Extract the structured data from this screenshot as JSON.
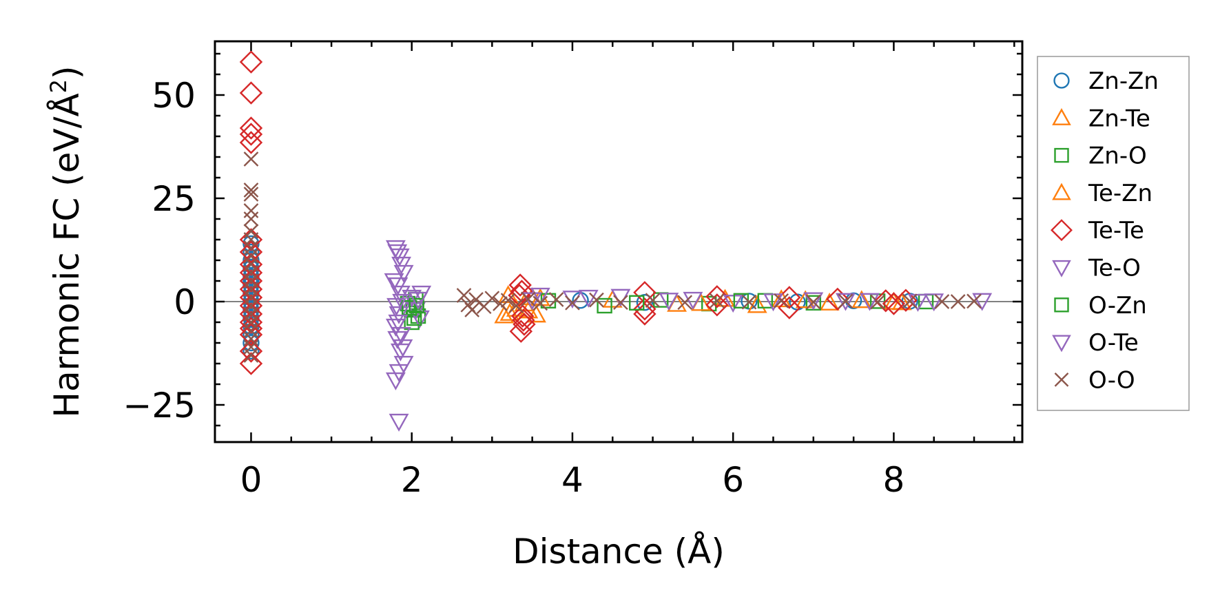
{
  "chart_data": {
    "type": "scatter",
    "xlabel": "Distance (Å)",
    "ylabel_main": "Harmonic FC (eV/Å",
    "ylabel_sup": "2",
    "ylabel_close": ")",
    "xlim": [
      -0.45,
      9.6
    ],
    "ylim": [
      -34,
      63
    ],
    "xticks": [
      0,
      2,
      4,
      6,
      8
    ],
    "xtick_labels": [
      "0",
      "2",
      "4",
      "6",
      "8"
    ],
    "yticks": [
      -25,
      0,
      25,
      50
    ],
    "ytick_labels": [
      "−25",
      "0",
      "25",
      "50"
    ],
    "zero_line": true,
    "grid": false,
    "legend_position": "right-outside",
    "series": [
      {
        "name": "Zn-Zn",
        "marker": "circle",
        "color": "#1f77b4",
        "points": [
          [
            0,
            14
          ],
          [
            0,
            12
          ],
          [
            0,
            10
          ],
          [
            0,
            8
          ],
          [
            0,
            6
          ],
          [
            0,
            5
          ],
          [
            0,
            4
          ],
          [
            0,
            2
          ],
          [
            0,
            0
          ],
          [
            0,
            -2
          ],
          [
            0,
            -4
          ],
          [
            0,
            -6
          ],
          [
            0,
            -8
          ],
          [
            0,
            -10
          ],
          [
            0,
            -12
          ],
          [
            4.1,
            0.3
          ],
          [
            4.9,
            -0.2
          ],
          [
            6.2,
            0.1
          ],
          [
            6.8,
            -0.1
          ],
          [
            7.5,
            0.2
          ],
          [
            8.2,
            0.1
          ]
        ]
      },
      {
        "name": "Zn-Te",
        "marker": "triangle-up",
        "color": "#ff7f0e",
        "points": [
          [
            3.15,
            -3.4
          ],
          [
            3.2,
            1.5
          ],
          [
            3.3,
            -1.8
          ],
          [
            3.45,
            -2.2
          ],
          [
            3.55,
            -3.2
          ],
          [
            3.6,
            0.8
          ],
          [
            4.5,
            0.4
          ],
          [
            5.3,
            -0.6
          ],
          [
            5.9,
            0.6
          ],
          [
            6.3,
            -0.9
          ],
          [
            6.6,
            0.5
          ],
          [
            7.2,
            -0.3
          ],
          [
            7.6,
            0.3
          ],
          [
            8.1,
            -0.2
          ]
        ]
      },
      {
        "name": "Zn-O",
        "marker": "square",
        "color": "#2ca02c",
        "points": [
          [
            1.95,
            -0.5
          ],
          [
            2.0,
            -5.0
          ],
          [
            2.02,
            -2.0
          ],
          [
            2.05,
            0.5
          ],
          [
            2.08,
            -3.5
          ],
          [
            3.7,
            0.2
          ],
          [
            4.4,
            -1.0
          ],
          [
            5.1,
            0.4
          ],
          [
            5.7,
            -0.5
          ],
          [
            6.4,
            0.2
          ],
          [
            7.0,
            -0.3
          ],
          [
            7.8,
            0.1
          ],
          [
            8.4,
            0.0
          ]
        ]
      },
      {
        "name": "Te-Zn",
        "marker": "triangle-up",
        "color": "#ff7f0e",
        "points": [
          [
            3.22,
            -2.8
          ],
          [
            3.4,
            -0.5
          ],
          [
            3.5,
            1.0
          ],
          [
            5.6,
            -0.4
          ],
          [
            6.9,
            0.3
          ],
          [
            8.0,
            -0.1
          ]
        ]
      },
      {
        "name": "Te-Te",
        "marker": "diamond",
        "color": "#d62728",
        "points": [
          [
            0,
            58
          ],
          [
            0,
            50.5
          ],
          [
            0,
            42
          ],
          [
            0,
            40.5
          ],
          [
            0,
            38.5
          ],
          [
            0,
            15
          ],
          [
            0,
            12
          ],
          [
            0,
            9
          ],
          [
            0,
            7
          ],
          [
            0,
            5
          ],
          [
            0,
            3
          ],
          [
            0,
            1
          ],
          [
            0,
            -1
          ],
          [
            0,
            -3
          ],
          [
            0,
            -5
          ],
          [
            0,
            -6.5
          ],
          [
            0,
            -8
          ],
          [
            0,
            -12
          ],
          [
            0,
            -15
          ],
          [
            3.35,
            4
          ],
          [
            3.37,
            2.5
          ],
          [
            3.38,
            -3.5
          ],
          [
            3.39,
            -4.5
          ],
          [
            3.4,
            -5.5
          ],
          [
            3.36,
            -7.2
          ],
          [
            3.34,
            1.5
          ],
          [
            4.9,
            2.2
          ],
          [
            4.9,
            -1.8
          ],
          [
            4.9,
            -3.0
          ],
          [
            5.8,
            1.2
          ],
          [
            5.8,
            -0.8
          ],
          [
            6.7,
            -1.5
          ],
          [
            6.7,
            1.0
          ],
          [
            7.3,
            0.6
          ],
          [
            7.9,
            0.2
          ],
          [
            8.0,
            -0.5
          ],
          [
            8.15,
            0.3
          ]
        ]
      },
      {
        "name": "Te-O",
        "marker": "triangle-down",
        "color": "#9467bd",
        "points": [
          [
            1.8,
            13
          ],
          [
            1.82,
            12
          ],
          [
            1.85,
            11
          ],
          [
            1.87,
            9
          ],
          [
            1.9,
            7
          ],
          [
            1.83,
            4
          ],
          [
            1.86,
            2
          ],
          [
            1.88,
            0
          ],
          [
            1.84,
            -3
          ],
          [
            1.8,
            -6
          ],
          [
            1.82,
            -9
          ],
          [
            1.86,
            -12
          ],
          [
            1.9,
            -15
          ],
          [
            1.84,
            -17
          ],
          [
            1.8,
            -19
          ],
          [
            1.84,
            -29
          ],
          [
            2.0,
            1
          ],
          [
            2.05,
            -2
          ],
          [
            2.1,
            -4
          ],
          [
            2.12,
            2
          ],
          [
            3.6,
            1.5
          ],
          [
            4.0,
            0.8
          ],
          [
            4.6,
            1.2
          ],
          [
            5.5,
            0.5
          ],
          [
            6.0,
            -0.2
          ],
          [
            7.0,
            0.4
          ],
          [
            7.7,
            0.2
          ],
          [
            8.5,
            0.1
          ],
          [
            9.1,
            0.2
          ]
        ]
      },
      {
        "name": "O-Zn",
        "marker": "square",
        "color": "#2ca02c",
        "points": [
          [
            1.97,
            -1.5
          ],
          [
            2.03,
            -4.0
          ],
          [
            2.06,
            -1.0
          ],
          [
            4.8,
            -0.3
          ],
          [
            6.1,
            0.2
          ]
        ]
      },
      {
        "name": "O-Te",
        "marker": "triangle-down",
        "color": "#9467bd",
        "points": [
          [
            1.78,
            5
          ],
          [
            1.81,
            -1
          ],
          [
            1.83,
            -5
          ],
          [
            1.87,
            -8
          ],
          [
            1.89,
            -11
          ],
          [
            2.08,
            0.5
          ],
          [
            3.5,
            0.4
          ],
          [
            4.2,
            1.0
          ],
          [
            5.2,
            0.3
          ],
          [
            6.5,
            0.1
          ],
          [
            7.4,
            0.2
          ],
          [
            8.3,
            0.0
          ]
        ]
      },
      {
        "name": "O-O",
        "marker": "x",
        "color": "#8c564b",
        "points": [
          [
            0,
            34.5
          ],
          [
            0,
            27
          ],
          [
            0,
            26
          ],
          [
            0,
            22
          ],
          [
            0,
            20
          ],
          [
            0,
            17
          ],
          [
            0,
            15
          ],
          [
            0,
            13
          ],
          [
            0,
            11
          ],
          [
            0,
            9
          ],
          [
            0,
            7
          ],
          [
            0,
            5
          ],
          [
            0,
            3
          ],
          [
            0,
            1
          ],
          [
            0,
            -1
          ],
          [
            0,
            -3
          ],
          [
            0,
            -5
          ],
          [
            0,
            -7
          ],
          [
            0,
            -9
          ],
          [
            0,
            -11
          ],
          [
            0,
            -13
          ],
          [
            2.65,
            1.5
          ],
          [
            2.7,
            -0.8
          ],
          [
            2.75,
            -2.0
          ],
          [
            2.8,
            0.5
          ],
          [
            2.9,
            -1.2
          ],
          [
            3.0,
            0.8
          ],
          [
            3.1,
            -0.5
          ],
          [
            3.2,
            0.3
          ],
          [
            3.3,
            -1.0
          ],
          [
            3.45,
            0.6
          ],
          [
            3.6,
            -0.4
          ],
          [
            3.8,
            0.5
          ],
          [
            4.0,
            -0.3
          ],
          [
            4.3,
            0.4
          ],
          [
            4.6,
            -0.2
          ],
          [
            5.0,
            0.3
          ],
          [
            5.4,
            -0.2
          ],
          [
            5.8,
            0.2
          ],
          [
            6.2,
            -0.1
          ],
          [
            6.6,
            0.2
          ],
          [
            7.0,
            -0.1
          ],
          [
            7.4,
            0.1
          ],
          [
            7.8,
            -0.1
          ],
          [
            8.2,
            0.1
          ],
          [
            8.6,
            0.0
          ],
          [
            8.8,
            0.0
          ],
          [
            9.0,
            0.1
          ]
        ]
      }
    ]
  }
}
